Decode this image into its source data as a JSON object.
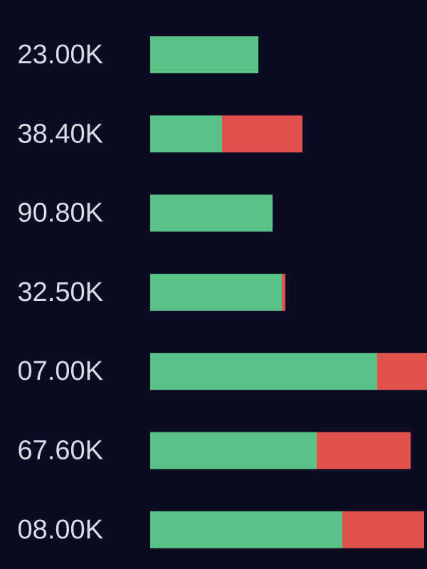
{
  "chart_data": {
    "type": "stacked-bar",
    "categories": [
      "23.00K",
      "38.40K",
      "90.80K",
      "32.50K",
      "07.00K",
      "67.60K",
      "08.00K"
    ],
    "series": [
      {
        "color": "#58c287",
        "values": [
          152,
          101,
          172,
          185,
          319,
          234,
          270
        ]
      },
      {
        "color": "#e0524b",
        "values": [
          0,
          113,
          0,
          5,
          70,
          132,
          115
        ]
      }
    ]
  }
}
